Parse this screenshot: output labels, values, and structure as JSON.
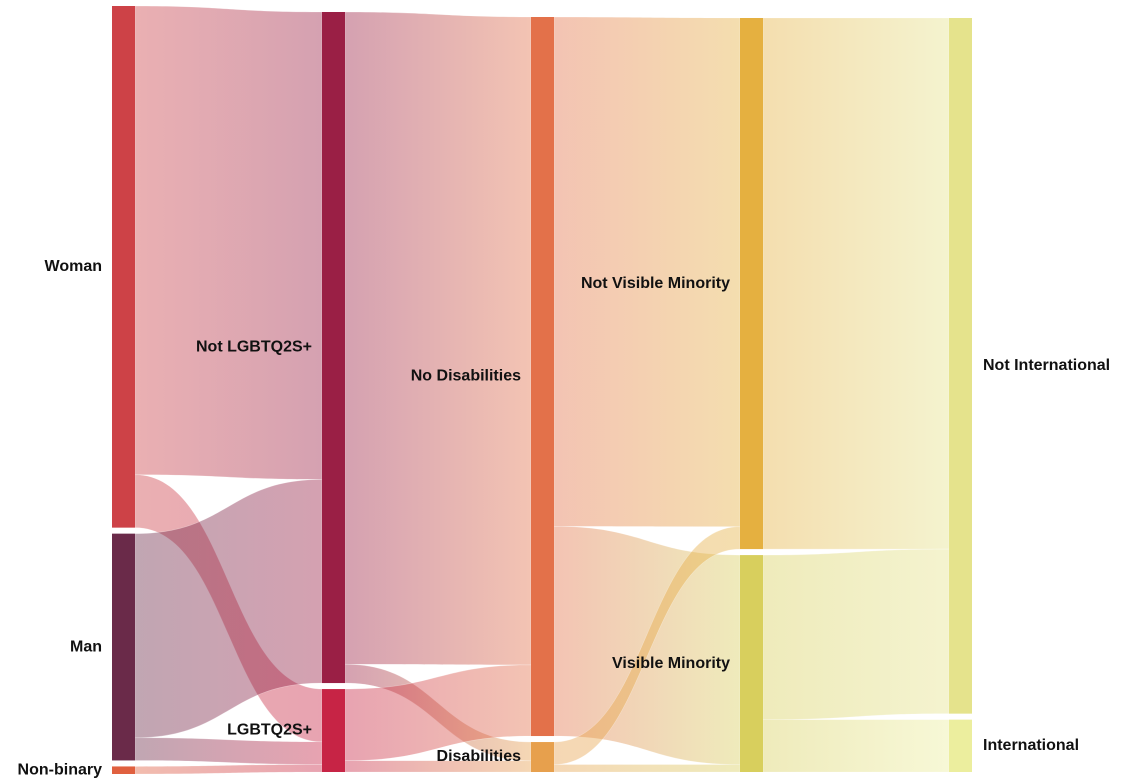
{
  "chart_data": {
    "type": "sankey",
    "stages": [
      {
        "nodes": [
          {
            "id": "woman",
            "label": "Woman",
            "value": 69,
            "color": "#cd4247"
          },
          {
            "id": "man",
            "label": "Man",
            "value": 30,
            "color": "#6a2a49"
          },
          {
            "id": "nonbinary",
            "label": "Non-binary",
            "value": 1,
            "color": "#e0603f"
          }
        ]
      },
      {
        "nodes": [
          {
            "id": "notlgbt",
            "label": "Not LGBTQ2S+",
            "value": 89,
            "color": "#9a1f45"
          },
          {
            "id": "lgbt",
            "label": "LGBTQ2S+",
            "value": 11,
            "color": "#c72445"
          }
        ]
      },
      {
        "nodes": [
          {
            "id": "nodis",
            "label": "No Disabilities",
            "value": 96,
            "color": "#e3714a"
          },
          {
            "id": "dis",
            "label": "Disabilities",
            "value": 4,
            "color": "#e7a04d"
          }
        ]
      },
      {
        "nodes": [
          {
            "id": "notvm",
            "label": "Not Visible Minority",
            "value": 71,
            "color": "#e5b040"
          },
          {
            "id": "vm",
            "label": "Visible Minority",
            "value": 29,
            "color": "#d8cf5d"
          }
        ]
      },
      {
        "nodes": [
          {
            "id": "notintl",
            "label": "Not International",
            "value": 93,
            "color": "#e5e38c"
          },
          {
            "id": "intl",
            "label": "International",
            "value": 7,
            "color": "#ecee9e"
          }
        ]
      }
    ],
    "links": [
      {
        "source": "woman",
        "target": "notlgbt",
        "value": 62
      },
      {
        "source": "woman",
        "target": "lgbt",
        "value": 7
      },
      {
        "source": "man",
        "target": "notlgbt",
        "value": 27
      },
      {
        "source": "man",
        "target": "lgbt",
        "value": 3
      },
      {
        "source": "nonbinary",
        "target": "lgbt",
        "value": 1
      },
      {
        "source": "notlgbt",
        "target": "nodis",
        "value": 86.5
      },
      {
        "source": "notlgbt",
        "target": "dis",
        "value": 2.5
      },
      {
        "source": "lgbt",
        "target": "nodis",
        "value": 9.5
      },
      {
        "source": "lgbt",
        "target": "dis",
        "value": 1.5
      },
      {
        "source": "nodis",
        "target": "notvm",
        "value": 68
      },
      {
        "source": "nodis",
        "target": "vm",
        "value": 28
      },
      {
        "source": "dis",
        "target": "notvm",
        "value": 3
      },
      {
        "source": "dis",
        "target": "vm",
        "value": 1
      },
      {
        "source": "notvm",
        "target": "notintl",
        "value": 71
      },
      {
        "source": "vm",
        "target": "notintl",
        "value": 22
      },
      {
        "source": "vm",
        "target": "intl",
        "value": 7
      }
    ]
  }
}
